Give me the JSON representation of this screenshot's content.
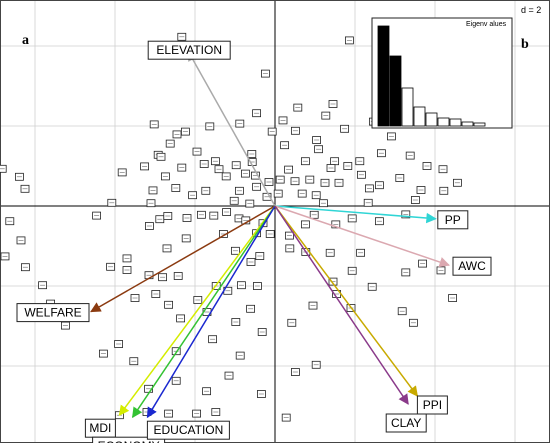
{
  "chart_data": {
    "type": "scatter",
    "subtype": "pca-biplot",
    "panel_labels": [
      "a",
      "b"
    ],
    "grid_label": "d = 2",
    "grid": true,
    "xlim": [
      -7.0,
      6.8
    ],
    "ylim": [
      -6.3,
      4.5
    ],
    "origin": [
      0,
      0
    ],
    "variables": [
      {
        "name": "ELEVATION",
        "x": -2.17,
        "y": 3.87,
        "color": "#aaaaaa"
      },
      {
        "name": "PP",
        "x": 4.02,
        "y": -0.32,
        "color": "#30d5d5"
      },
      {
        "name": "AWC",
        "x": 4.35,
        "y": -1.48,
        "color": "#dba8b0"
      },
      {
        "name": "WELFARE",
        "x": -4.6,
        "y": -2.64,
        "color": "#8b3a10"
      },
      {
        "name": "MDI",
        "x": -3.89,
        "y": -5.23,
        "color": "#d4ec00"
      },
      {
        "name": "ECONOMY",
        "x": -3.56,
        "y": -5.28,
        "color": "#33c233"
      },
      {
        "name": "EDUCATION",
        "x": -3.19,
        "y": -5.28,
        "color": "#1a28d0"
      },
      {
        "name": "PPI",
        "x": 3.56,
        "y": -4.75,
        "color": "#c8aa00"
      },
      {
        "name": "CLAY",
        "x": 3.33,
        "y": -4.95,
        "color": "#8a3a8a"
      }
    ],
    "observations": [
      [
        -0.24,
        3.31
      ],
      [
        1.45,
        2.55
      ],
      [
        1.86,
        4.14
      ],
      [
        -2.33,
        4.23
      ],
      [
        -2.24,
        1.86
      ],
      [
        -2.92,
        1.28
      ],
      [
        -1.63,
        1.99
      ],
      [
        -3.82,
        0.84
      ],
      [
        -4.08,
        0.08
      ],
      [
        -3.1,
        0.07
      ],
      [
        -4.46,
        -0.24
      ],
      [
        -2.88,
        -0.33
      ],
      [
        -3.14,
        -0.5
      ],
      [
        -2.68,
        -0.25
      ],
      [
        -2.2,
        -0.3
      ],
      [
        -1.84,
        -0.22
      ],
      [
        -1.21,
        -0.15
      ],
      [
        -0.9,
        -0.31
      ],
      [
        -0.3,
        -0.43
      ],
      [
        -0.12,
        -0.7
      ],
      [
        -1.73,
        0.38
      ],
      [
        -0.89,
        0.38
      ],
      [
        -1.4,
        0.92
      ],
      [
        -1.22,
        0.74
      ],
      [
        -0.74,
        0.81
      ],
      [
        -2.74,
        0.74
      ],
      [
        -2.33,
        0.96
      ],
      [
        -1.77,
        1.05
      ],
      [
        -1.95,
        1.36
      ],
      [
        -1.49,
        1.12
      ],
      [
        -0.58,
        1.3
      ],
      [
        -0.97,
        1.02
      ],
      [
        -0.57,
        1.1
      ],
      [
        -0.49,
        0.76
      ],
      [
        -0.46,
        0.48
      ],
      [
        -0.2,
        0.23
      ],
      [
        0.08,
        0.31
      ],
      [
        0.24,
        1.52
      ],
      [
        0.51,
        1.88
      ],
      [
        1.04,
        1.65
      ],
      [
        0.76,
        1.12
      ],
      [
        1.09,
        1.42
      ],
      [
        1.49,
        1.12
      ],
      [
        1.82,
        1.0
      ],
      [
        2.12,
        1.12
      ],
      [
        2.66,
        1.32
      ],
      [
        2.16,
        0.78
      ],
      [
        2.36,
        0.44
      ],
      [
        3.12,
        0.7
      ],
      [
        2.61,
        0.52
      ],
      [
        3.65,
        0.4
      ],
      [
        4.22,
        0.38
      ],
      [
        4.56,
        0.58
      ],
      [
        3.51,
        0.15
      ],
      [
        3.27,
        -0.21
      ],
      [
        2.61,
        -0.38
      ],
      [
        1.52,
        -0.46
      ],
      [
        1.93,
        -0.31
      ],
      [
        2.33,
        0.08
      ],
      [
        1.21,
        0.07
      ],
      [
        0.98,
        -0.22
      ],
      [
        0.76,
        -0.46
      ],
      [
        0.36,
        -0.74
      ],
      [
        0.37,
        -1.06
      ],
      [
        0.77,
        -1.15
      ],
      [
        1.38,
        -1.17
      ],
      [
        2.14,
        -1.17
      ],
      [
        1.93,
        -1.62
      ],
      [
        2.43,
        -2.02
      ],
      [
        3.27,
        -1.66
      ],
      [
        3.69,
        -1.44
      ],
      [
        4.15,
        -1.61
      ],
      [
        3.18,
        -2.63
      ],
      [
        3.46,
        -2.92
      ],
      [
        4.44,
        -2.3
      ],
      [
        1.9,
        -2.55
      ],
      [
        1.54,
        -2.2
      ],
      [
        1.45,
        -1.89
      ],
      [
        0.95,
        -2.49
      ],
      [
        0.42,
        -2.92
      ],
      [
        0.51,
        -4.15
      ],
      [
        1.03,
        -3.97
      ],
      [
        0.28,
        -5.29
      ],
      [
        0.69,
        -6.06
      ],
      [
        -0.32,
        -3.15
      ],
      [
        -0.61,
        -2.57
      ],
      [
        -0.44,
        -2.0
      ],
      [
        -0.84,
        -1.98
      ],
      [
        -1.18,
        -2.12
      ],
      [
        -1.47,
        -2.0
      ],
      [
        -1.7,
        -2.65
      ],
      [
        -1.93,
        -2.35
      ],
      [
        -2.36,
        -2.81
      ],
      [
        -2.66,
        -2.47
      ],
      [
        -2.42,
        -1.75
      ],
      [
        -2.81,
        -1.78
      ],
      [
        -3.15,
        -1.73
      ],
      [
        -2.98,
        -2.2
      ],
      [
        -3.5,
        -2.3
      ],
      [
        -3.7,
        -1.6
      ],
      [
        -4.11,
        -1.52
      ],
      [
        -3.7,
        -1.31
      ],
      [
        -2.7,
        -1.06
      ],
      [
        -2.22,
        -0.81
      ],
      [
        -1.29,
        -0.7
      ],
      [
        -0.99,
        -1.12
      ],
      [
        -0.6,
        -1.4
      ],
      [
        -0.38,
        -1.25
      ],
      [
        -0.98,
        -2.9
      ],
      [
        -1.56,
        -3.33
      ],
      [
        -2.47,
        -3.63
      ],
      [
        -0.87,
        -3.74
      ],
      [
        -0.34,
        -4.7
      ],
      [
        -1.15,
        -4.24
      ],
      [
        -1.71,
        -4.63
      ],
      [
        -1.48,
        -5.15
      ],
      [
        -1.96,
        -5.19
      ],
      [
        -2.66,
        -5.19
      ],
      [
        -3.2,
        -5.15
      ],
      [
        -3.89,
        -5.23
      ],
      [
        -3.16,
        -4.57
      ],
      [
        -2.47,
        -4.37
      ],
      [
        -3.53,
        -3.88
      ],
      [
        -3.91,
        -3.45
      ],
      [
        -4.29,
        -3.69
      ],
      [
        -5.24,
        -2.99
      ],
      [
        -5.61,
        -2.44
      ],
      [
        -5.81,
        -1.98
      ],
      [
        -6.24,
        -1.53
      ],
      [
        -6.35,
        -0.86
      ],
      [
        -6.25,
        0.43
      ],
      [
        -6.39,
        0.73
      ],
      [
        -6.82,
        0.93
      ],
      [
        -6.63,
        -0.38
      ],
      [
        -6.75,
        -1.26
      ],
      [
        -0.73,
        -0.36
      ],
      [
        -0.46,
        -0.68
      ],
      [
        -0.15,
        0.6
      ],
      [
        0.13,
        0.66
      ],
      [
        0.34,
        0.91
      ],
      [
        0.5,
        0.62
      ],
      [
        0.68,
        0.31
      ],
      [
        0.87,
        0.66
      ],
      [
        1.03,
        0.27
      ],
      [
        1.25,
        0.58
      ],
      [
        1.4,
        0.95
      ],
      [
        1.6,
        0.58
      ],
      [
        -0.63,
        0.06
      ],
      [
        -1.02,
        0.13
      ],
      [
        -1.53,
        -0.24
      ],
      [
        -2.06,
        0.27
      ],
      [
        -2.48,
        0.45
      ],
      [
        -3.05,
        0.39
      ],
      [
        -3.26,
        0.99
      ],
      [
        -2.85,
        1.23
      ],
      [
        -2.62,
        1.56
      ],
      [
        -2.45,
        1.79
      ],
      [
        -3.02,
        2.04
      ],
      [
        -0.88,
        2.06
      ],
      [
        -0.46,
        2.32
      ],
      [
        -0.07,
        1.86
      ],
      [
        0.2,
        2.14
      ],
      [
        0.57,
        2.46
      ],
      [
        1.27,
        2.26
      ],
      [
        1.74,
        1.93
      ],
      [
        2.46,
        2.11
      ],
      [
        2.91,
        1.74
      ],
      [
        3.38,
        1.26
      ],
      [
        3.8,
        1.0
      ],
      [
        4.2,
        0.92
      ]
    ],
    "eigenvalues_title": "Eigenv alues",
    "eigenvalues": [
      1.0,
      0.7,
      0.38,
      0.19,
      0.13,
      0.08,
      0.07,
      0.04,
      0.03
    ]
  }
}
